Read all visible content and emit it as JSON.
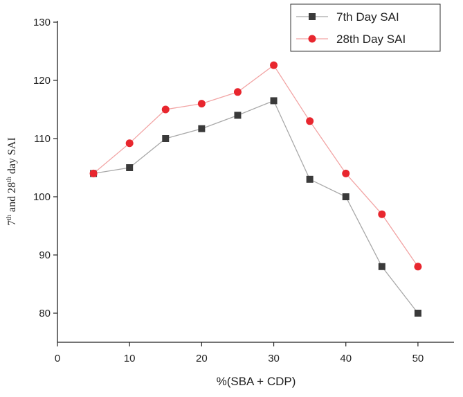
{
  "chart_data": {
    "type": "line",
    "title": "",
    "xlabel": "%(SBA + CDP)",
    "ylabel": {
      "parts": [
        "7",
        "th",
        " and 28",
        "th",
        " day SAI"
      ]
    },
    "xlim": [
      0,
      55
    ],
    "ylim": [
      75,
      130
    ],
    "xticks": [
      0,
      10,
      20,
      30,
      40,
      50
    ],
    "yticks": [
      80,
      90,
      100,
      110,
      120,
      130
    ],
    "x": [
      5,
      10,
      15,
      20,
      25,
      30,
      35,
      40,
      45,
      50
    ],
    "series": [
      {
        "name": "7th Day SAI",
        "marker": "square",
        "marker_color": "#3a3a3a",
        "line_color": "#a8a8a8",
        "values": [
          104,
          105,
          110,
          111.7,
          114,
          116.5,
          103,
          100,
          88,
          80
        ]
      },
      {
        "name": "28th Day SAI",
        "marker": "circle",
        "marker_color": "#e8262e",
        "line_color": "#f2a4a4",
        "values": [
          104,
          109.2,
          115,
          116,
          118,
          122.6,
          113,
          104,
          97,
          88
        ]
      }
    ],
    "legend_position": "top-right",
    "grid": false
  }
}
